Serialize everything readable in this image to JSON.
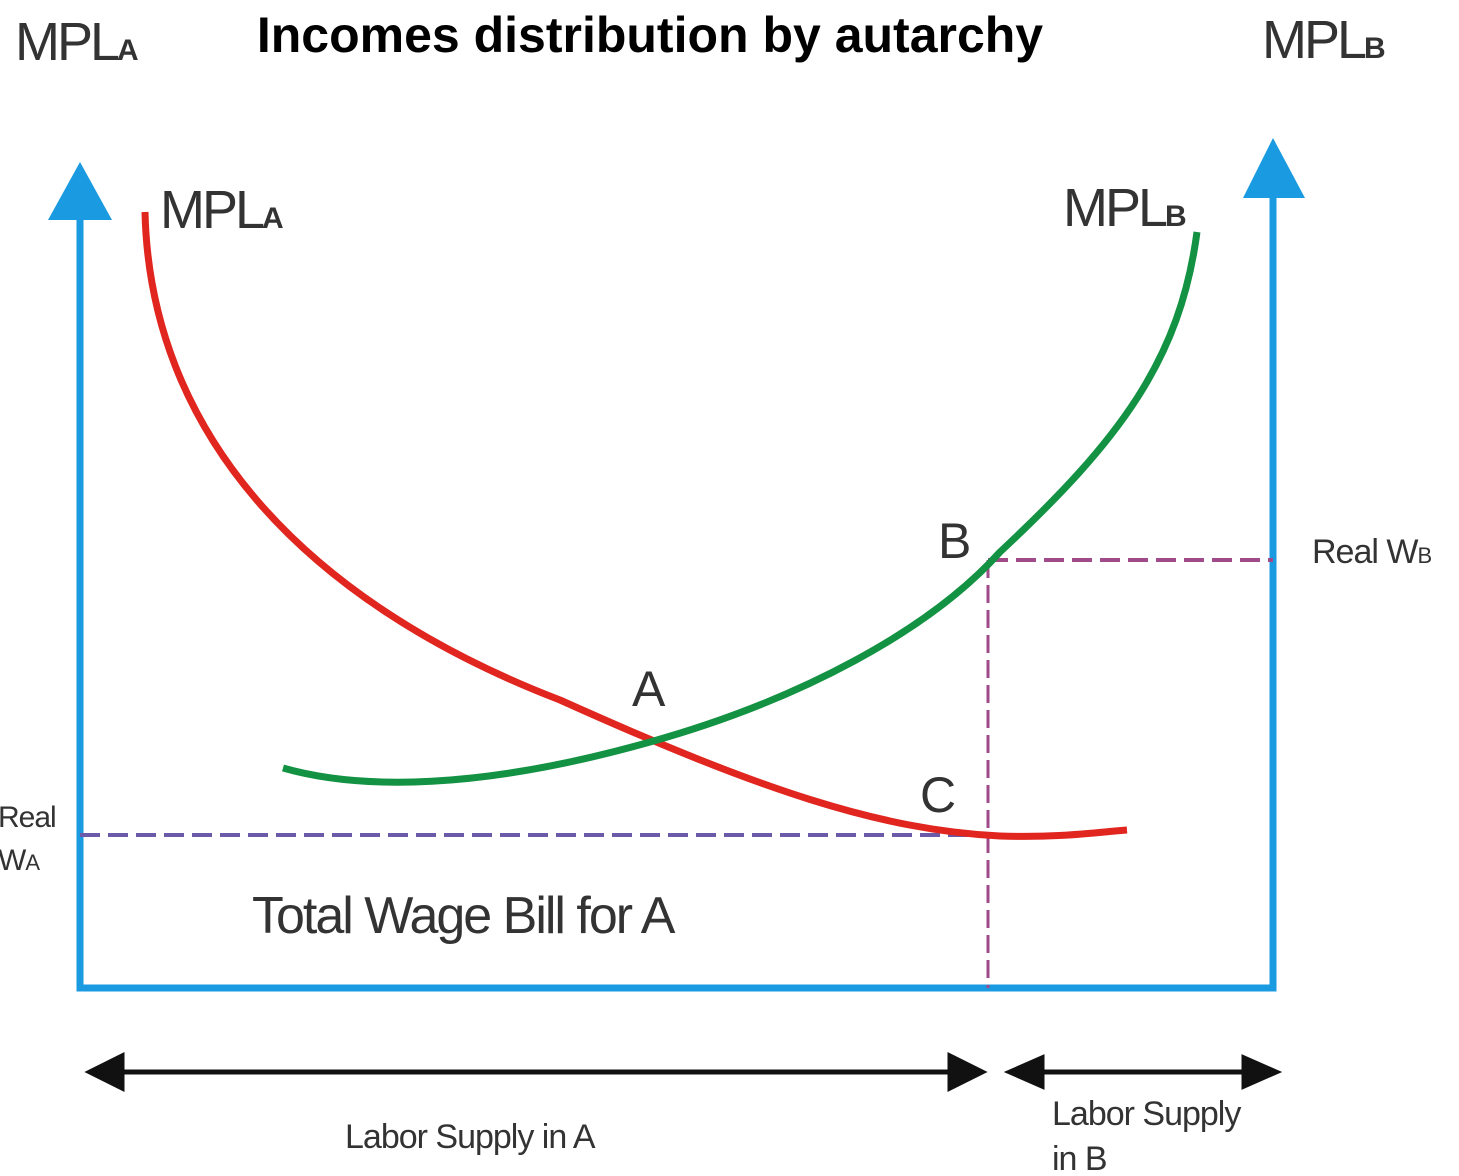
{
  "title": "Incomes distribution by autarchy",
  "corner_labels": {
    "left": {
      "main": "MPL",
      "sub": "A"
    },
    "right": {
      "main": "MPL",
      "sub": "B"
    }
  },
  "curves": [
    {
      "label": {
        "main": "MPL",
        "sub": "A"
      }
    },
    {
      "label": {
        "main": "MPL",
        "sub": "B"
      }
    }
  ],
  "points": [
    "A",
    "B",
    "C"
  ],
  "wage_labels": {
    "b": {
      "main": "Real W",
      "sub": "B"
    },
    "a": {
      "line1": "Real",
      "line2_main": "W",
      "line2_sub": "A"
    }
  },
  "area_label": "Total Wage Bill for A",
  "supply": {
    "a": "Labor Supply in A",
    "b": [
      "Labor Supply",
      "in B"
    ]
  }
}
